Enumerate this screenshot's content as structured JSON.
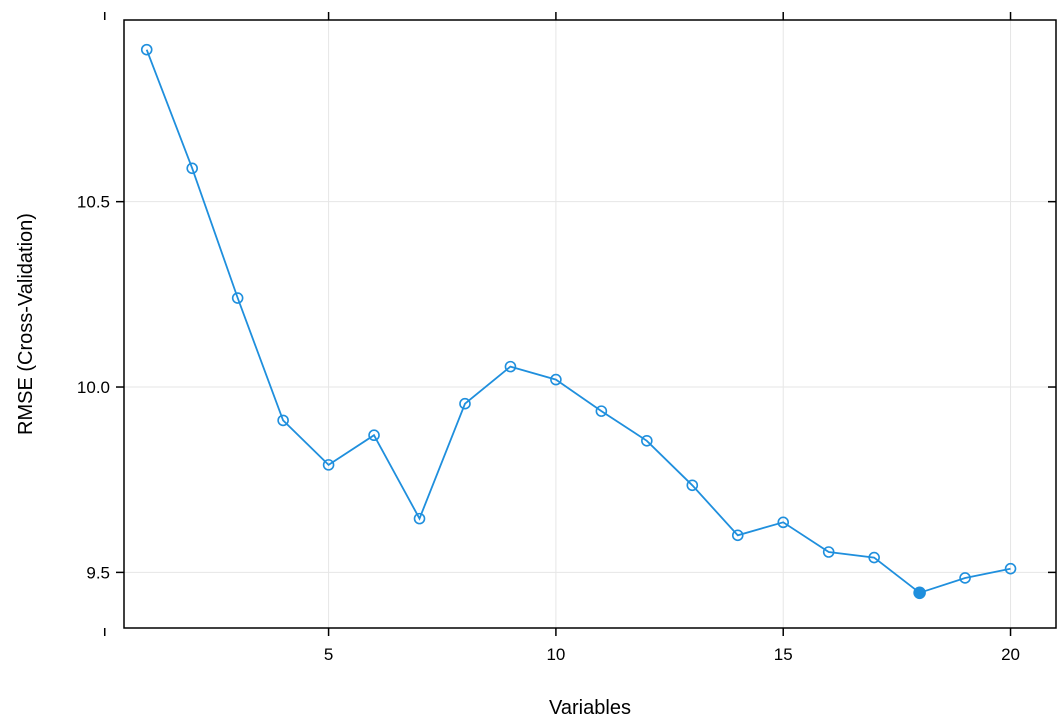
{
  "chart_data": {
    "type": "line",
    "title": "",
    "xlabel": "Variables",
    "ylabel": "RMSE (Cross-Validation)",
    "xlim": [
      0.5,
      21
    ],
    "ylim": [
      9.35,
      10.99
    ],
    "x_ticks": [
      5,
      10,
      15,
      20
    ],
    "x_tick_labels": [
      "5",
      "10",
      "15",
      "20"
    ],
    "y_ticks": [
      9.5,
      10.0,
      10.5
    ],
    "y_tick_labels": [
      "9.5",
      "10.0",
      "10.5"
    ],
    "grid": true,
    "line_color": "#1f8fdd",
    "series": [
      {
        "x": [
          1,
          2,
          3,
          4,
          5,
          6,
          7,
          8,
          9,
          10,
          11,
          12,
          13,
          14,
          15,
          16,
          17,
          18,
          19,
          20
        ],
        "values": [
          10.91,
          10.59,
          10.24,
          9.91,
          9.79,
          9.87,
          9.645,
          9.955,
          10.055,
          10.02,
          9.935,
          9.855,
          9.735,
          9.6,
          9.635,
          9.555,
          9.54,
          9.445,
          9.485,
          9.51
        ],
        "highlighted_x": 18
      }
    ]
  }
}
